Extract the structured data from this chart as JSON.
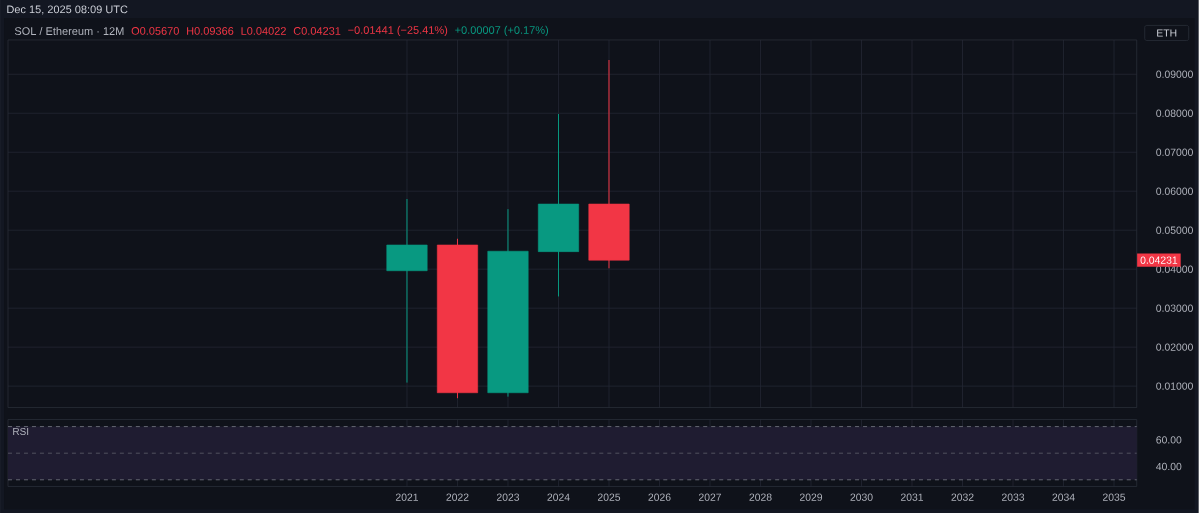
{
  "chart_data": [
    {
      "type": "candlestick",
      "title": "SOL / Ethereum · 12M",
      "ylabel": "ETH",
      "x": [
        2021,
        2022,
        2023,
        2024,
        2025
      ],
      "ohlc": [
        [
          0.0396,
          0.058,
          0.0109,
          0.0462
        ],
        [
          0.0462,
          0.0478,
          0.0069,
          0.0083
        ],
        [
          0.0083,
          0.0554,
          0.0073,
          0.0446
        ],
        [
          0.0445,
          0.0798,
          0.033,
          0.0567
        ],
        [
          0.0567,
          0.09366,
          0.04022,
          0.04231
        ]
      ],
      "colors": [
        "#089981",
        "#f23645",
        "#089981",
        "#089981",
        "#f23645"
      ],
      "xlim": [
        2013.1,
        2035.45
      ],
      "ylim": [
        0.0045,
        0.0988
      ],
      "xticks": [
        2021,
        2022,
        2023,
        2024,
        2025,
        2026,
        2027,
        2028,
        2029,
        2030,
        2031,
        2032,
        2033,
        2034,
        2035
      ],
      "yticks": [
        {
          "value": 0.01,
          "label": "0.01000"
        },
        {
          "value": 0.02,
          "label": "0.02000"
        },
        {
          "value": 0.03,
          "label": "0.03000"
        },
        {
          "value": 0.04,
          "label": "0.04000"
        },
        {
          "value": 0.05,
          "label": "0.05000"
        },
        {
          "value": 0.06,
          "label": "0.06000"
        },
        {
          "value": 0.07,
          "label": "0.07000"
        },
        {
          "value": 0.08,
          "label": "0.08000"
        },
        {
          "value": 0.09,
          "label": "0.09000"
        }
      ],
      "tick_labels": "y",
      "grid": true,
      "annotations": [
        "Dec 15, 2025 08:09 UTC",
        "O0.05670",
        "H0.09366",
        "L0.04022",
        "C0.04231",
        "−0.01441 (−25.41%)",
        "+0.00007 (+0.17%)",
        {
          "text": "0.04231",
          "y": 0.04231
        }
      ]
    },
    {
      "type": "line",
      "title": "RSI",
      "xlim": [
        2013.1,
        2035.45
      ],
      "ylim": [
        25,
        75.3
      ],
      "xticks": [
        2021,
        2022,
        2023,
        2024,
        2025,
        2026,
        2027,
        2028,
        2029,
        2030,
        2031,
        2032,
        2033,
        2034,
        2035
      ],
      "yticks": [
        {
          "value": 60,
          "label": "60.00"
        },
        {
          "value": 40,
          "label": "40.00"
        }
      ],
      "grid": "x",
      "bands": [
        {
          "axis": "y",
          "from": 30,
          "to": 70,
          "color": "#1f1c31"
        }
      ],
      "ref_lines": [
        {
          "axis": "y",
          "value": 70,
          "line_style": "dashed",
          "color": "#787b86"
        },
        {
          "axis": "y",
          "value": 50,
          "line_style": "dashed",
          "color": "#5d606b"
        },
        {
          "axis": "y",
          "value": 30,
          "line_style": "dashed",
          "color": "#787b86"
        }
      ]
    }
  ]
}
